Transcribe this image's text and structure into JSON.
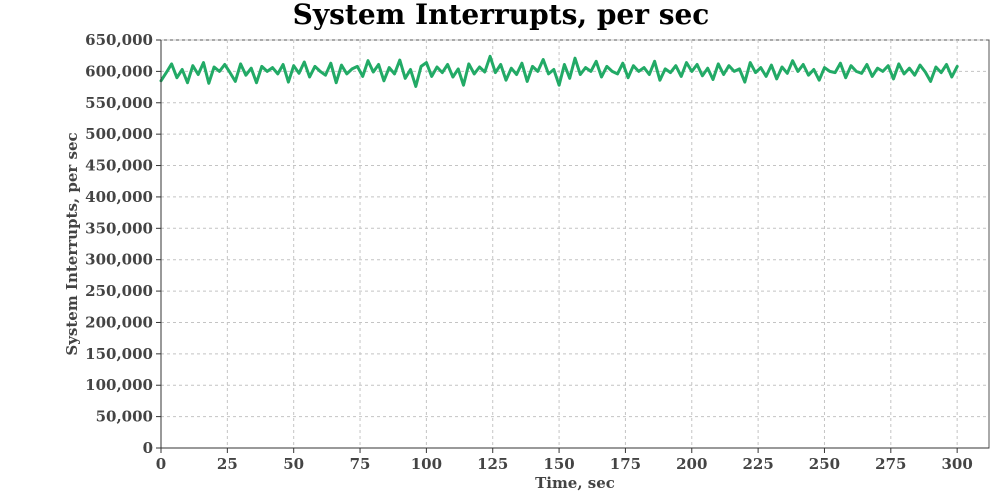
{
  "chart_data": {
    "type": "line",
    "title": "System Interrupts, per sec",
    "xlabel": "Time, sec",
    "ylabel": "System Interrupts, per sec",
    "xlim": [
      0,
      312
    ],
    "ylim": [
      0,
      650000
    ],
    "xticks": [
      0,
      25,
      50,
      75,
      100,
      125,
      150,
      175,
      200,
      225,
      250,
      275,
      300
    ],
    "yticks": [
      0,
      50000,
      100000,
      150000,
      200000,
      250000,
      300000,
      350000,
      400000,
      450000,
      500000,
      550000,
      600000,
      650000
    ],
    "xtick_labels": [
      "0",
      "25",
      "50",
      "75",
      "100",
      "125",
      "150",
      "175",
      "200",
      "225",
      "250",
      "275",
      "300"
    ],
    "ytick_labels": [
      "0",
      "50,000",
      "100,000",
      "150,000",
      "200,000",
      "250,000",
      "300,000",
      "350,000",
      "400,000",
      "450,000",
      "500,000",
      "550,000",
      "600,000",
      "650,000"
    ],
    "grid": true,
    "legend": "none",
    "series": [
      {
        "color": "#22aa66",
        "x": [
          0,
          2,
          4,
          6,
          8,
          10,
          12,
          14,
          16,
          18,
          20,
          22,
          24,
          26,
          28,
          30,
          32,
          34,
          36,
          38,
          40,
          42,
          44,
          46,
          48,
          50,
          52,
          54,
          56,
          58,
          60,
          62,
          64,
          66,
          68,
          70,
          72,
          74,
          76,
          78,
          80,
          82,
          84,
          86,
          88,
          90,
          92,
          94,
          96,
          98,
          100,
          102,
          104,
          106,
          108,
          110,
          112,
          114,
          116,
          118,
          120,
          122,
          124,
          126,
          128,
          130,
          132,
          134,
          136,
          138,
          140,
          142,
          144,
          146,
          148,
          150,
          152,
          154,
          156,
          158,
          160,
          162,
          164,
          166,
          168,
          170,
          172,
          174,
          176,
          178,
          180,
          182,
          184,
          186,
          188,
          190,
          192,
          194,
          196,
          198,
          200,
          202,
          204,
          206,
          208,
          210,
          212,
          214,
          216,
          218,
          220,
          222,
          224,
          226,
          228,
          230,
          232,
          234,
          236,
          238,
          240,
          242,
          244,
          246,
          248,
          250,
          252,
          254,
          256,
          258,
          260,
          262,
          264,
          266,
          268,
          270,
          272,
          274,
          276,
          278,
          280,
          282,
          284,
          286,
          288,
          290,
          292,
          294,
          296,
          298,
          300
        ],
        "y": [
          585000,
          598000,
          612000,
          590000,
          603000,
          582000,
          609000,
          595000,
          614000,
          581000,
          607000,
          600000,
          611000,
          598000,
          584000,
          612000,
          594000,
          605000,
          582000,
          608000,
          600000,
          606000,
          596000,
          611000,
          583000,
          609000,
          597000,
          615000,
          591000,
          608000,
          600000,
          594000,
          613000,
          582000,
          610000,
          596000,
          604000,
          608000,
          592000,
          617000,
          599000,
          611000,
          585000,
          606000,
          596000,
          618000,
          589000,
          603000,
          576000,
          608000,
          614000,
          592000,
          607000,
          598000,
          611000,
          591000,
          604000,
          578000,
          612000,
          596000,
          607000,
          599000,
          624000,
          598000,
          611000,
          586000,
          605000,
          595000,
          613000,
          584000,
          608000,
          600000,
          619000,
          596000,
          603000,
          578000,
          611000,
          589000,
          621000,
          595000,
          606000,
          600000,
          616000,
          591000,
          608000,
          600000,
          596000,
          613000,
          590000,
          609000,
          600000,
          606000,
          595000,
          616000,
          586000,
          604000,
          598000,
          609000,
          592000,
          614000,
          600000,
          611000,
          593000,
          605000,
          587000,
          612000,
          595000,
          609000,
          600000,
          604000,
          583000,
          614000,
          598000,
          606000,
          592000,
          610000,
          588000,
          607000,
          597000,
          617000,
          600000,
          611000,
          594000,
          603000,
          586000,
          606000,
          600000,
          598000,
          613000,
          590000,
          609000,
          600000,
          597000,
          611000,
          592000,
          605000,
          600000,
          609000,
          588000,
          612000,
          596000,
          605000,
          594000,
          610000,
          599000,
          584000,
          607000,
          598000,
          611000,
          591000,
          608000
        ]
      }
    ]
  }
}
